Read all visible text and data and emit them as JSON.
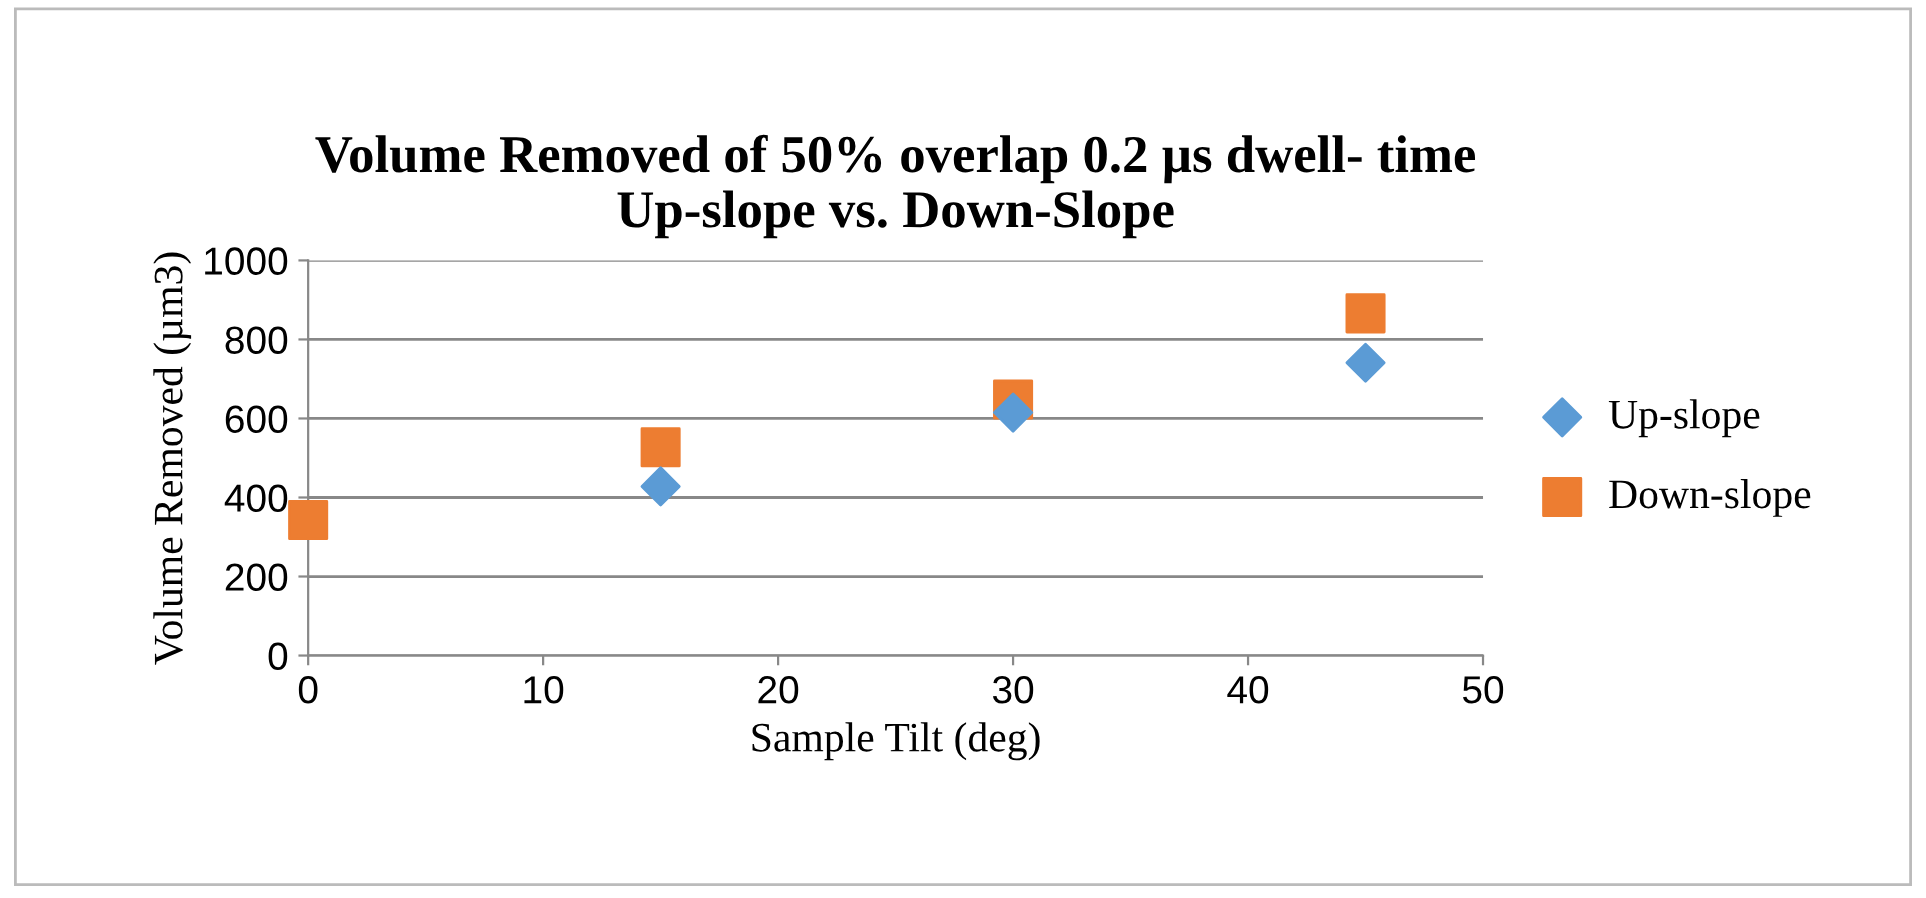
{
  "chart_data": {
    "type": "scatter",
    "title": "Volume Removed of 50% overlap 0.2 µs dwell- time\nUp-slope vs. Down-Slope",
    "xlabel": "Sample Tilt (deg)",
    "ylabel": "Volume Removed (µm3)",
    "x": [
      0,
      15,
      30,
      45
    ],
    "series": [
      {
        "name": "Up-slope",
        "color": "#5b9bd5",
        "marker": "diamond",
        "values": [
          null,
          428,
          615,
          741
        ]
      },
      {
        "name": "Down-slope",
        "color": "#ed7d31",
        "marker": "square",
        "values": [
          343,
          527,
          648,
          866
        ]
      }
    ],
    "xlim": [
      0,
      50
    ],
    "xticks": [
      0,
      10,
      20,
      30,
      40,
      50
    ],
    "ylim": [
      0,
      1000
    ],
    "yticks": [
      0,
      200,
      400,
      600,
      800,
      1000
    ],
    "grid": "y",
    "legend": "right"
  }
}
